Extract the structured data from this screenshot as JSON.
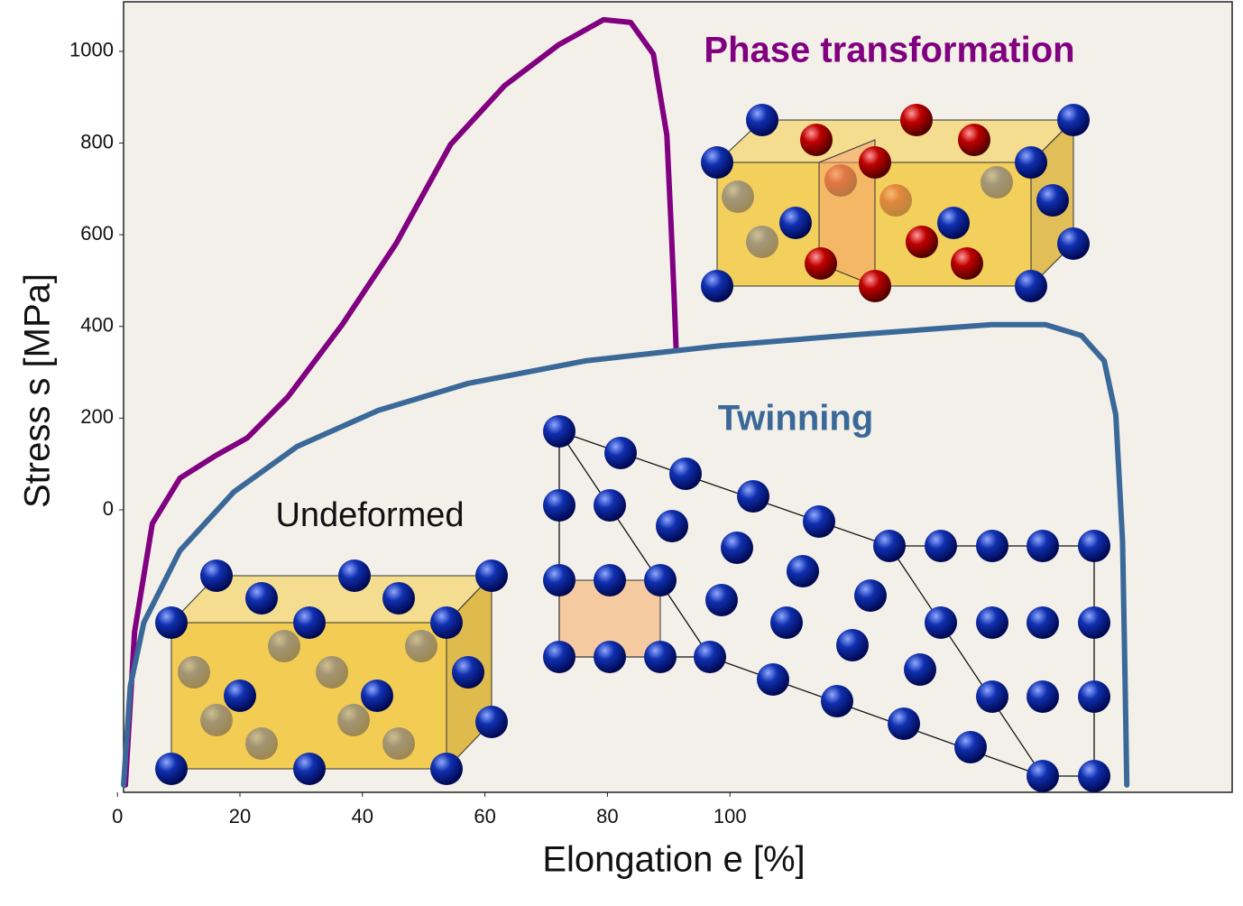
{
  "chart_data": {
    "type": "line",
    "xlabel": "Elongation e [%]",
    "ylabel": "Stress s [MPa]",
    "xlim": [
      1,
      182
    ],
    "ylim": [
      -616,
      1108
    ],
    "xticks": [
      0,
      20,
      40,
      60,
      80,
      100
    ],
    "yticks": [
      0,
      200,
      400,
      600,
      800,
      1000
    ],
    "annotations": [
      "Phase transformation",
      "Twinning",
      "Undeformed"
    ],
    "series": [
      {
        "name": "Phase transformation",
        "color": "#800080",
        "x": [
          1.3,
          2.8,
          5.7,
          10.2,
          16.0,
          21.2,
          27.8,
          36.7,
          45.5,
          54.4,
          63.2,
          72.0,
          79.4,
          83.8,
          87.5,
          89.7,
          90.4,
          90.9,
          91.2
        ],
        "values": [
          -600,
          -266,
          -30,
          69,
          118,
          157,
          246,
          404,
          581,
          797,
          925,
          1014,
          1069,
          1063,
          994,
          817,
          620,
          463,
          354
        ]
      },
      {
        "name": "Twinning",
        "color": "#3a6898",
        "x": [
          1.0,
          2.1,
          4.3,
          10.2,
          19.0,
          29.3,
          42.6,
          57.3,
          76.4,
          98.5,
          120.6,
          142.7,
          151.5,
          157.4,
          161.1,
          163.0,
          164.1,
          164.5,
          164.8
        ],
        "values": [
          -600,
          -384,
          -246,
          -89,
          39,
          138,
          217,
          276,
          325,
          358,
          382,
          404,
          404,
          380,
          325,
          207,
          -69,
          -364,
          -600
        ]
      }
    ]
  }
}
